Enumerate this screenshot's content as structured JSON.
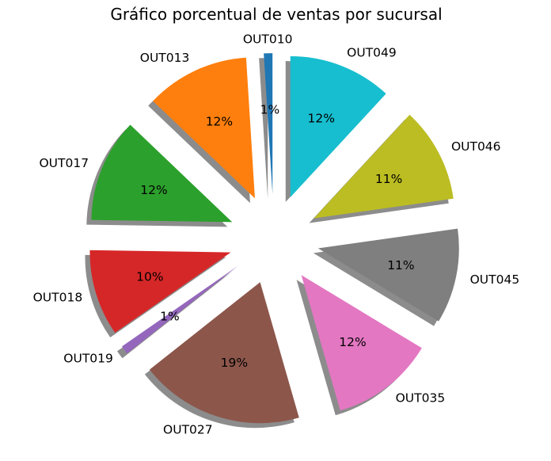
{
  "chart_data": {
    "type": "pie",
    "title": "Gráfico porcentual de ventas por sucursal",
    "slices": [
      {
        "label": "OUT010",
        "percent": 1,
        "pct_label": "1%",
        "color": "#1f77b4"
      },
      {
        "label": "OUT013",
        "percent": 12,
        "pct_label": "12%",
        "color": "#ff7f0e"
      },
      {
        "label": "OUT017",
        "percent": 12,
        "pct_label": "12%",
        "color": "#2ca02c"
      },
      {
        "label": "OUT018",
        "percent": 10,
        "pct_label": "10%",
        "color": "#d62728"
      },
      {
        "label": "OUT019",
        "percent": 1,
        "pct_label": "1%",
        "color": "#9467bd"
      },
      {
        "label": "OUT027",
        "percent": 19,
        "pct_label": "19%",
        "color": "#8c564b"
      },
      {
        "label": "OUT035",
        "percent": 12,
        "pct_label": "12%",
        "color": "#e377c2"
      },
      {
        "label": "OUT045",
        "percent": 11,
        "pct_label": "11%",
        "color": "#7f7f7f"
      },
      {
        "label": "OUT046",
        "percent": 11,
        "pct_label": "11%",
        "color": "#bcbd22"
      },
      {
        "label": "OUT049",
        "percent": 12,
        "pct_label": "12%",
        "color": "#17becf"
      }
    ],
    "shadow": true,
    "exploded": true,
    "legend": "none"
  }
}
